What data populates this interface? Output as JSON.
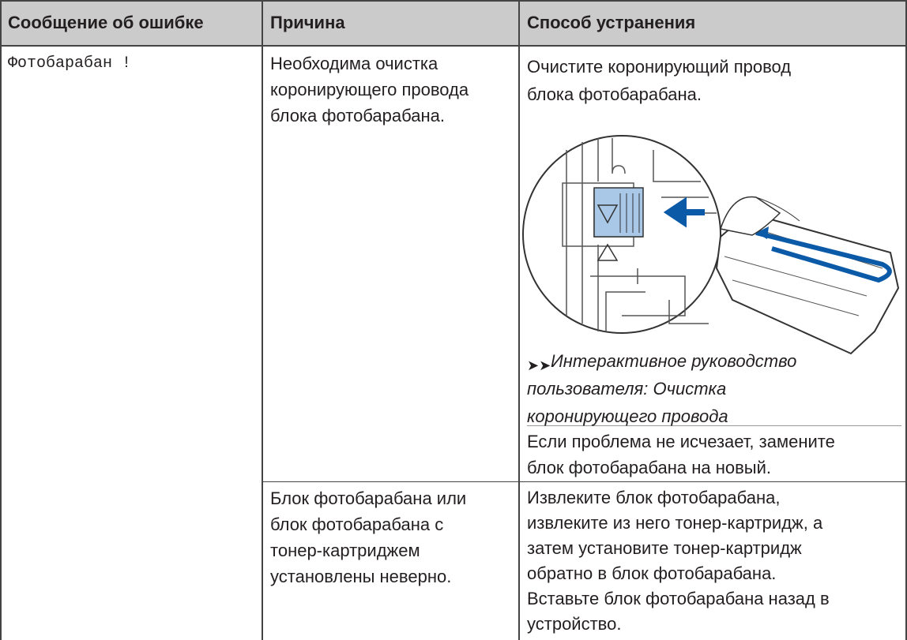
{
  "table": {
    "headers": [
      "Сообщение об ошибке",
      "Причина",
      "Способ устранения"
    ],
    "rows": [
      {
        "message": "Фотобарабан !",
        "cause": [
          "Необходима очистка",
          "коронирующего провода",
          "блока фотобарабана."
        ],
        "solution": [
          "Очистите коронирующий провод",
          "блока фотобарабана."
        ],
        "link": [
          "Интерактивное руководство",
          "пользователя: Очистка",
          "коронирующего провода"
        ],
        "note": [
          "Если проблема не исчезает, замените",
          "блок фотобарабана на новый."
        ]
      },
      {
        "cause": [
          "Блок фотобарабана или",
          "блок фотобарабана с",
          "тонер-картриджем",
          "установлены неверно."
        ],
        "solution": [
          "Извлеките блок фотобарабана,",
          "извлеките из него тонер-картридж, а",
          "затем установите тонер-картридж",
          "обратно в блок фотобарабана.",
          "Вставьте блок фотобарабана назад в",
          "устройство."
        ]
      }
    ]
  }
}
